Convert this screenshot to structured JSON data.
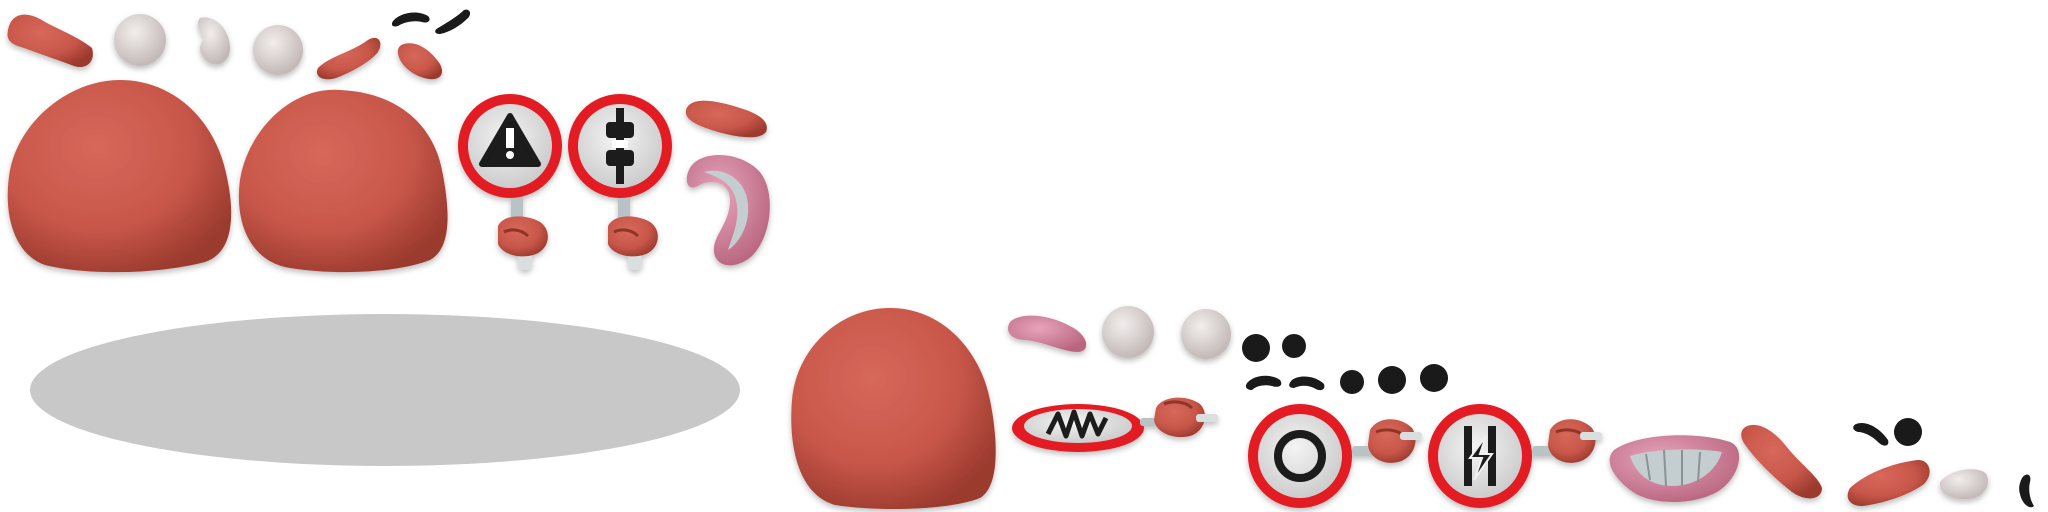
{
  "sprite_sheet": {
    "colors": {
      "clay_red": "#c8574a",
      "clay_dark": "#8f3427",
      "eye_white": "#e4dedc",
      "mouth_pink": "#d98aa6",
      "mouth_inner": "#c4cdcf",
      "sign_red": "#e21f24",
      "sign_white": "#e8e8e8",
      "sign_symbol": "#1a1a1a",
      "shadow_grey": "#c8c8c8"
    },
    "sprites": [
      {
        "name": "red-eyebrow-sprite"
      },
      {
        "name": "eye-white-sprite"
      },
      {
        "name": "eyelid-sprite"
      },
      {
        "name": "black-brow-sprite"
      },
      {
        "name": "large-head-blob-sprite"
      },
      {
        "name": "warning-sign-sprite",
        "icon": "warning-icon"
      },
      {
        "name": "hitch-sign-sprite",
        "icon": "hitch-icon"
      },
      {
        "name": "pink-mouth-sprite"
      },
      {
        "name": "ground-shadow-sprite"
      },
      {
        "name": "scribble-sign-sprite",
        "icon": "scribble-icon"
      },
      {
        "name": "ring-sign-sprite",
        "icon": "ring-icon"
      },
      {
        "name": "lightning-sign-sprite",
        "icon": "lightning-icon"
      },
      {
        "name": "clay-hand-sprite"
      },
      {
        "name": "black-pupil-sprite"
      },
      {
        "name": "grin-mouth-sprite"
      }
    ]
  }
}
